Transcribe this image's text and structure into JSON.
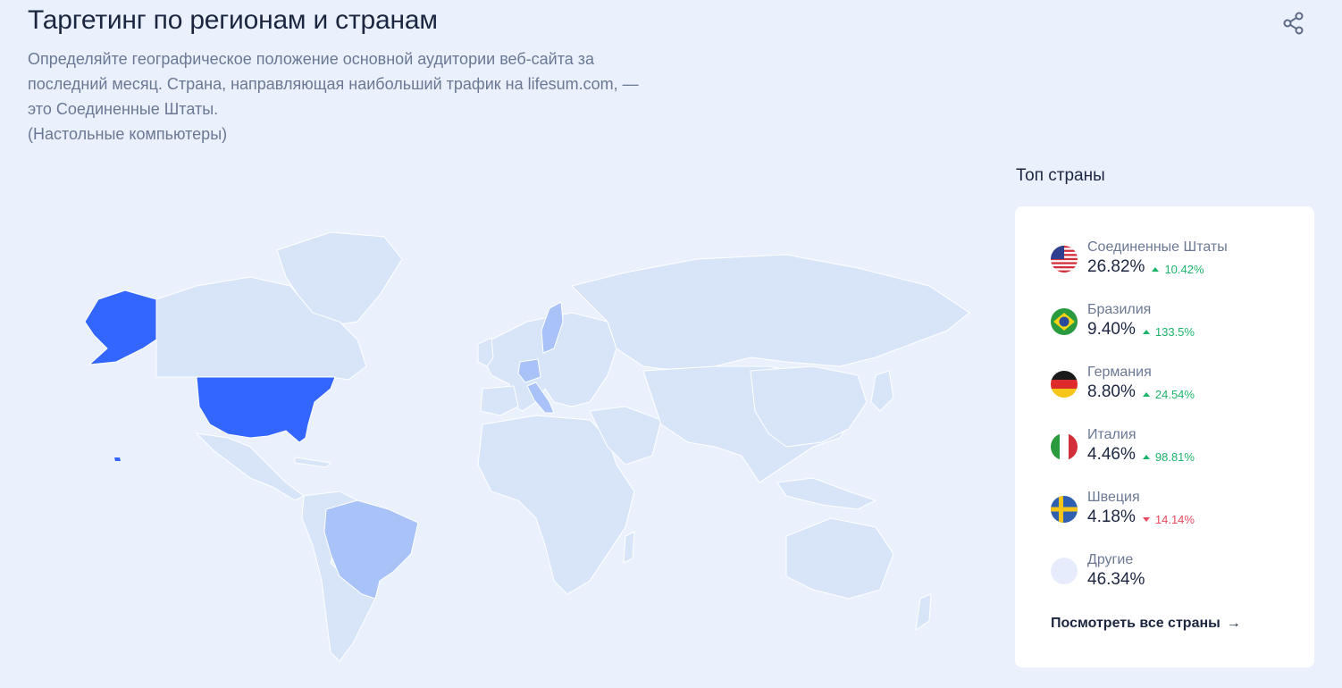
{
  "header": {
    "title": "Таргетинг по регионам и странам",
    "description_lines": [
      "Определяйте географическое положение основной аудитории веб-сайта за",
      "последний месяц. Страна, направляющая наибольший трафик на lifesum.com, —",
      "это Соединенные Штаты.",
      "(Настольные компьютеры)"
    ],
    "share_icon": "share-icon"
  },
  "colors": {
    "background": "#eaf1fc",
    "map_default": "#d8e4f8",
    "map_top": "#3366ff",
    "map_mid": "#a9c2f8",
    "positive": "#1db36a",
    "negative": "#e84a5f"
  },
  "top_countries": {
    "label": "Топ страны",
    "items": [
      {
        "name": "Соединенные Штаты",
        "share": "26.82%",
        "change": "10.42%",
        "direction": "up",
        "flag": "us-flag-icon"
      },
      {
        "name": "Бразилия",
        "share": "9.40%",
        "change": "133.5%",
        "direction": "up",
        "flag": "brazil-flag-icon"
      },
      {
        "name": "Германия",
        "share": "8.80%",
        "change": "24.54%",
        "direction": "up",
        "flag": "germany-flag-icon"
      },
      {
        "name": "Италия",
        "share": "4.46%",
        "change": "98.81%",
        "direction": "up",
        "flag": "italy-flag-icon"
      },
      {
        "name": "Швеция",
        "share": "4.18%",
        "change": "14.14%",
        "direction": "down",
        "flag": "sweden-flag-icon"
      },
      {
        "name": "Другие",
        "share": "46.34%",
        "flag": "others-circle-icon"
      }
    ],
    "see_all": "Посмотреть все страны"
  }
}
